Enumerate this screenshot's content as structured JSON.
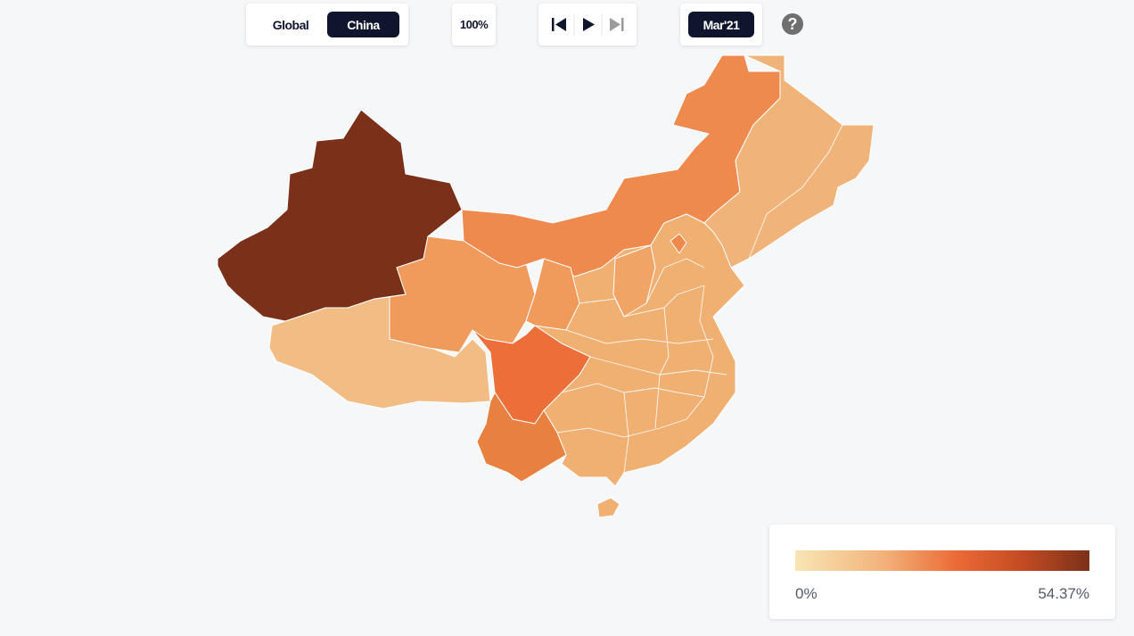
{
  "controls": {
    "scope": [
      "Global",
      "China"
    ],
    "zoom": "100%",
    "date": "Mar'21",
    "help": "?"
  },
  "legend": {
    "min": "0%",
    "max": "54.37%"
  }
}
